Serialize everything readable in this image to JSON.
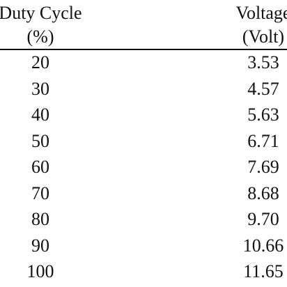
{
  "table": {
    "headers": [
      [
        "Duty Cycle",
        "(%)"
      ],
      [
        "Voltage",
        "(Volt)"
      ]
    ],
    "rows": [
      [
        "20",
        "3.53"
      ],
      [
        "30",
        "4.57"
      ],
      [
        "40",
        "5.63"
      ],
      [
        "50",
        "6.71"
      ],
      [
        "60",
        "7.69"
      ],
      [
        "70",
        "8.68"
      ],
      [
        "80",
        "9.70"
      ],
      [
        "90",
        "10.66"
      ],
      [
        "100",
        "11.65"
      ]
    ]
  }
}
